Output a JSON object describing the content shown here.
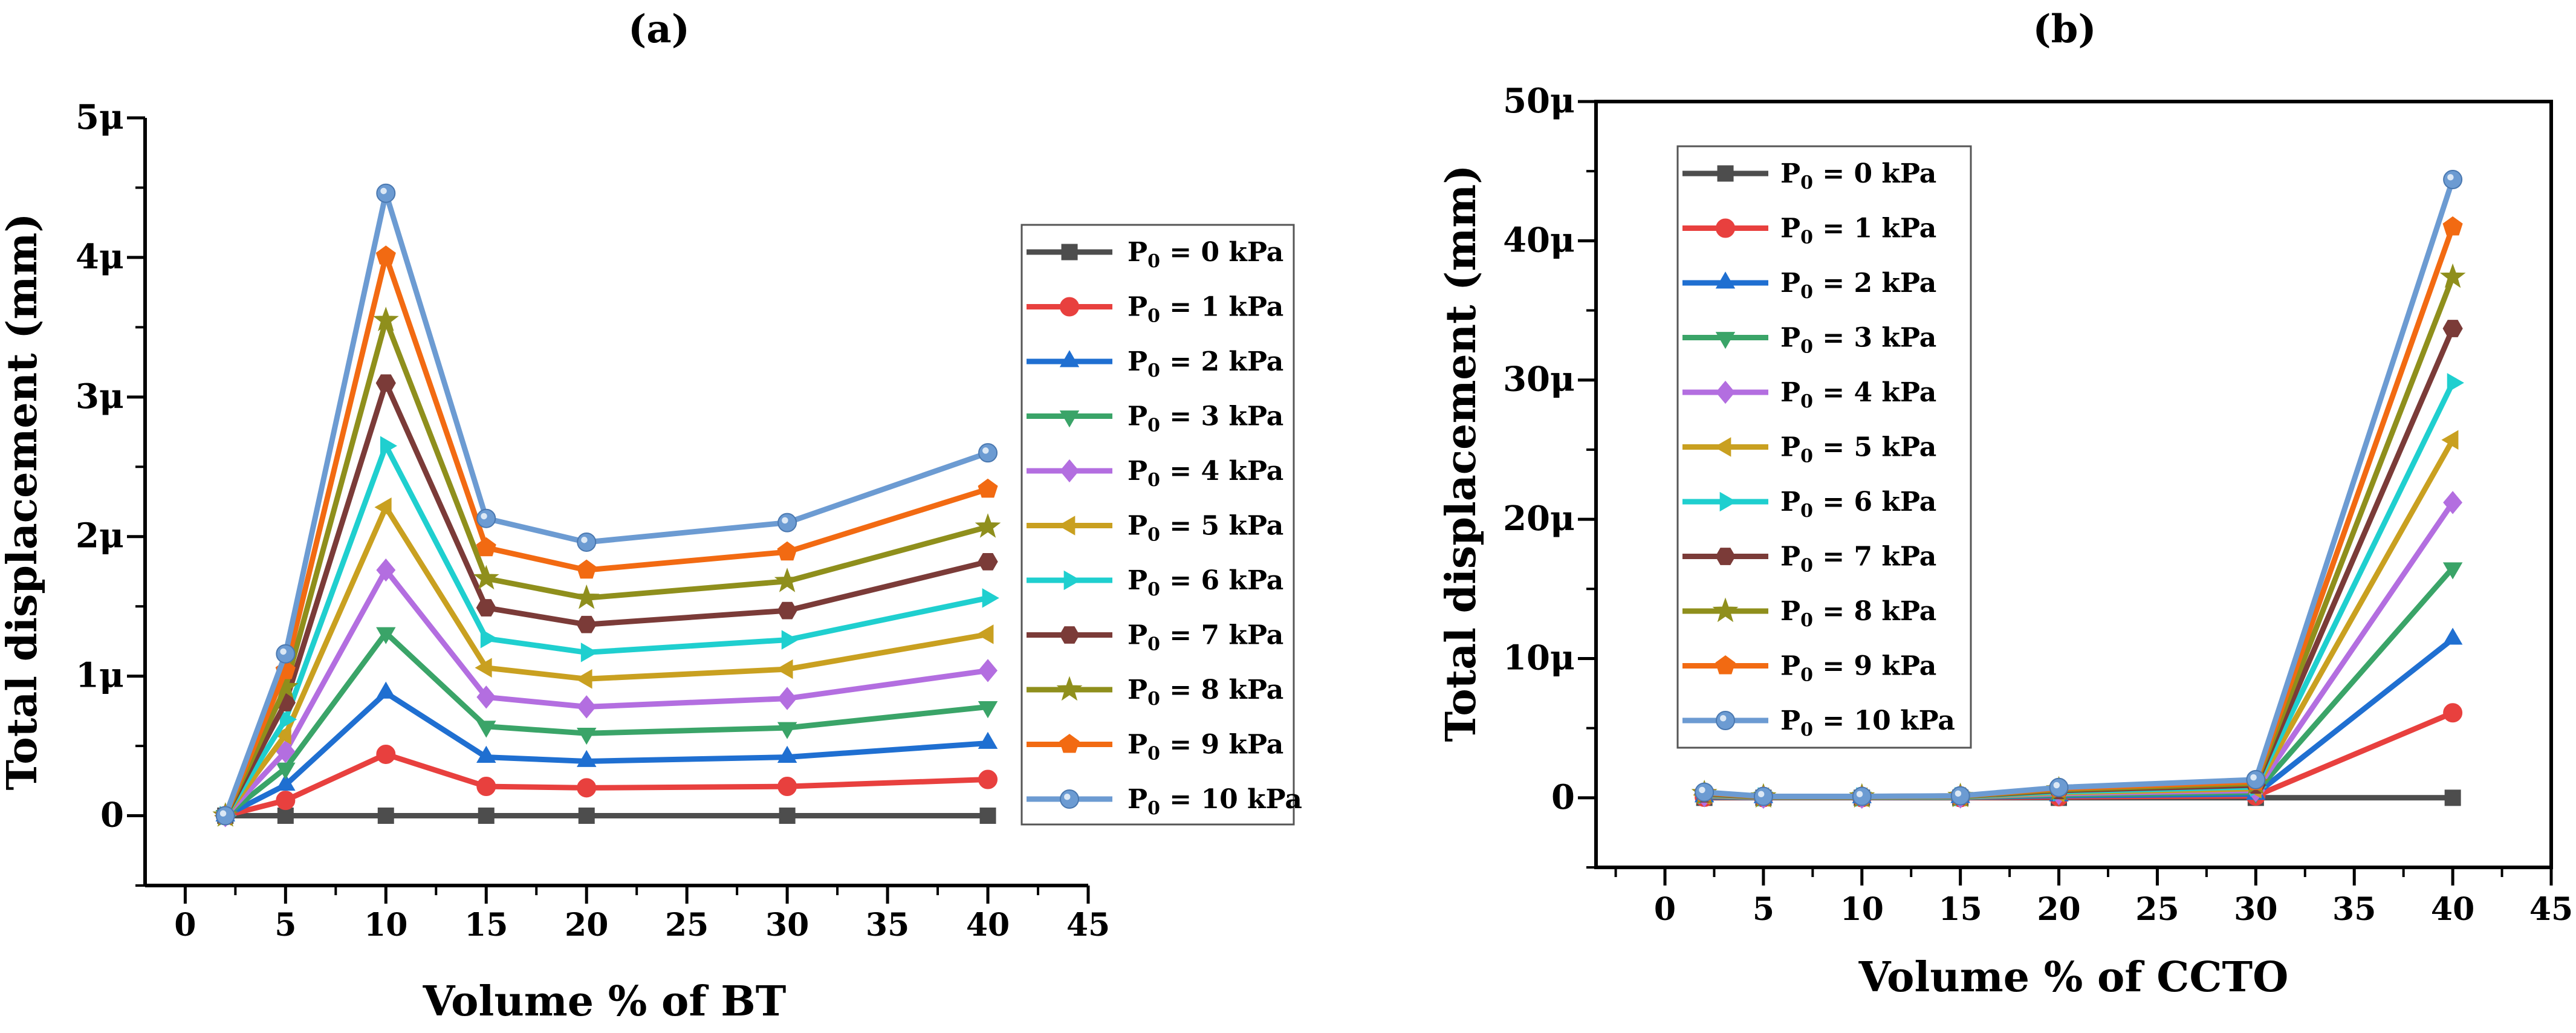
{
  "chart_data": [
    {
      "type": "line",
      "panel_label": "(a)",
      "xlabel": "Volume % of BT",
      "ylabel": "Total displacement (mm)",
      "xlim": [
        -2,
        45
      ],
      "ylim": [
        -0.5,
        5
      ],
      "xticks": [
        0,
        5,
        10,
        15,
        20,
        25,
        30,
        35,
        40,
        45
      ],
      "xtick_labels": [
        "0",
        "5",
        "10",
        "15",
        "20",
        "25",
        "30",
        "35",
        "40",
        "45"
      ],
      "yticks": [
        0,
        1,
        2,
        3,
        4,
        5
      ],
      "ytick_labels": [
        "0",
        "1μ",
        "2μ",
        "3μ",
        "4μ",
        "5μ"
      ],
      "legend_position": "right",
      "x": [
        2,
        5,
        10,
        15,
        20,
        30,
        40
      ],
      "series": [
        {
          "name_prefix": "P",
          "name_sub": "0",
          "name_suffix": " = 0 kPa",
          "color": "#4d4d4d",
          "marker": "square",
          "values": [
            0,
            0,
            0,
            0,
            0,
            0,
            0
          ]
        },
        {
          "name_prefix": "P",
          "name_sub": "0",
          "name_suffix": " = 1 kPa",
          "color": "#e8403e",
          "marker": "circle",
          "values": [
            0,
            0.11,
            0.44,
            0.21,
            0.2,
            0.21,
            0.26
          ]
        },
        {
          "name_prefix": "P",
          "name_sub": "0",
          "name_suffix": " = 2 kPa",
          "color": "#1f6fd1",
          "marker": "triangle-up",
          "values": [
            0,
            0.22,
            0.88,
            0.42,
            0.39,
            0.42,
            0.52
          ]
        },
        {
          "name_prefix": "P",
          "name_sub": "0",
          "name_suffix": " = 3 kPa",
          "color": "#3aa468",
          "marker": "triangle-down",
          "values": [
            0,
            0.34,
            1.31,
            0.64,
            0.59,
            0.63,
            0.78
          ]
        },
        {
          "name_prefix": "P",
          "name_sub": "0",
          "name_suffix": " = 4 kPa",
          "color": "#b36ee0",
          "marker": "diamond",
          "values": [
            0,
            0.46,
            1.76,
            0.85,
            0.78,
            0.84,
            1.04
          ]
        },
        {
          "name_prefix": "P",
          "name_sub": "0",
          "name_suffix": " = 5 kPa",
          "color": "#c9a020",
          "marker": "triangle-left",
          "values": [
            0,
            0.58,
            2.21,
            1.06,
            0.98,
            1.05,
            1.3
          ]
        },
        {
          "name_prefix": "P",
          "name_sub": "0",
          "name_suffix": " = 6 kPa",
          "color": "#1fcfcf",
          "marker": "triangle-right",
          "values": [
            0,
            0.69,
            2.65,
            1.27,
            1.17,
            1.26,
            1.56
          ]
        },
        {
          "name_prefix": "P",
          "name_sub": "0",
          "name_suffix": " = 7 kPa",
          "color": "#7b3b38",
          "marker": "hexagon",
          "values": [
            0,
            0.81,
            3.1,
            1.49,
            1.37,
            1.47,
            1.82
          ]
        },
        {
          "name_prefix": "P",
          "name_sub": "0",
          "name_suffix": " = 8 kPa",
          "color": "#8f8f1c",
          "marker": "star",
          "values": [
            0,
            0.92,
            3.55,
            1.7,
            1.56,
            1.68,
            2.07
          ]
        },
        {
          "name_prefix": "P",
          "name_sub": "0",
          "name_suffix": " = 9 kPa",
          "color": "#f26a12",
          "marker": "pentagon",
          "values": [
            0,
            1.04,
            4.01,
            1.92,
            1.76,
            1.89,
            2.34
          ]
        },
        {
          "name_prefix": "P",
          "name_sub": "0",
          "name_suffix": " = 10 kPa",
          "color": "#6c9bd2",
          "marker": "circle-dot",
          "values": [
            0,
            1.16,
            4.46,
            2.13,
            1.96,
            2.1,
            2.6
          ]
        }
      ]
    },
    {
      "type": "line",
      "panel_label": "(b)",
      "xlabel": "Volume % of CCTO",
      "ylabel": "Total displacement (mm)",
      "xlim": [
        -3.5,
        45
      ],
      "ylim": [
        -5,
        50
      ],
      "xticks": [
        0,
        5,
        10,
        15,
        20,
        25,
        30,
        35,
        40,
        45
      ],
      "xtick_labels": [
        "0",
        "5",
        "10",
        "15",
        "20",
        "25",
        "30",
        "35",
        "40",
        "45"
      ],
      "yticks": [
        0,
        10,
        20,
        30,
        40,
        50
      ],
      "ytick_labels": [
        "0",
        "10μ",
        "20μ",
        "30μ",
        "40μ",
        "50μ"
      ],
      "legend_position": "top-left",
      "x": [
        2,
        5,
        10,
        15,
        20,
        30,
        40
      ],
      "series": [
        {
          "name_prefix": "P",
          "name_sub": "0",
          "name_suffix": " = 0 kPa",
          "color": "#4d4d4d",
          "marker": "square",
          "values": [
            0,
            0,
            0,
            0,
            0,
            0,
            0
          ]
        },
        {
          "name_prefix": "P",
          "name_sub": "0",
          "name_suffix": " = 1 kPa",
          "color": "#e8403e",
          "marker": "circle",
          "values": [
            0.04,
            0.01,
            0.01,
            0.01,
            0.07,
            0.13,
            6.1
          ]
        },
        {
          "name_prefix": "P",
          "name_sub": "0",
          "name_suffix": " = 2 kPa",
          "color": "#1f6fd1",
          "marker": "triangle-up",
          "values": [
            0.08,
            0.02,
            0.02,
            0.03,
            0.15,
            0.26,
            11.4
          ]
        },
        {
          "name_prefix": "P",
          "name_sub": "0",
          "name_suffix": " = 3 kPa",
          "color": "#3aa468",
          "marker": "triangle-down",
          "values": [
            0.12,
            0.03,
            0.03,
            0.04,
            0.22,
            0.39,
            16.5
          ]
        },
        {
          "name_prefix": "P",
          "name_sub": "0",
          "name_suffix": " = 4 kPa",
          "color": "#b36ee0",
          "marker": "diamond",
          "values": [
            0.16,
            0.04,
            0.04,
            0.06,
            0.3,
            0.52,
            21.2
          ]
        },
        {
          "name_prefix": "P",
          "name_sub": "0",
          "name_suffix": " = 5 kPa",
          "color": "#c9a020",
          "marker": "triangle-left",
          "values": [
            0.2,
            0.05,
            0.05,
            0.07,
            0.37,
            0.65,
            25.7
          ]
        },
        {
          "name_prefix": "P",
          "name_sub": "0",
          "name_suffix": " = 6 kPa",
          "color": "#1fcfcf",
          "marker": "triangle-right",
          "values": [
            0.24,
            0.06,
            0.06,
            0.08,
            0.44,
            0.78,
            29.8
          ]
        },
        {
          "name_prefix": "P",
          "name_sub": "0",
          "name_suffix": " = 7 kPa",
          "color": "#7b3b38",
          "marker": "hexagon",
          "values": [
            0.28,
            0.07,
            0.07,
            0.1,
            0.52,
            0.91,
            33.7
          ]
        },
        {
          "name_prefix": "P",
          "name_sub": "0",
          "name_suffix": " = 8 kPa",
          "color": "#8f8f1c",
          "marker": "star",
          "values": [
            0.32,
            0.08,
            0.08,
            0.11,
            0.59,
            1.04,
            37.4
          ]
        },
        {
          "name_prefix": "P",
          "name_sub": "0",
          "name_suffix": " = 9 kPa",
          "color": "#f26a12",
          "marker": "pentagon",
          "values": [
            0.36,
            0.09,
            0.09,
            0.13,
            0.67,
            1.17,
            41.0
          ]
        },
        {
          "name_prefix": "P",
          "name_sub": "0",
          "name_suffix": " = 10 kPa",
          "color": "#6c9bd2",
          "marker": "circle-dot",
          "values": [
            0.4,
            0.1,
            0.1,
            0.14,
            0.74,
            1.3,
            44.4
          ]
        }
      ]
    }
  ]
}
